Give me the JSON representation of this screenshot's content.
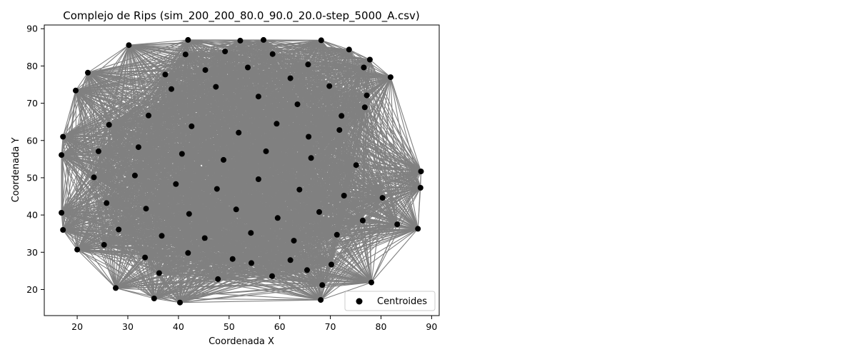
{
  "chart_data": {
    "type": "scatter",
    "title": "Complejo de Rips (sim_200_200_80.0_90.0_20.0-step_5000_A.csv)",
    "xlabel": "Coordenada X",
    "ylabel": "Coordenada Y",
    "xlim": [
      13.5,
      91.5
    ],
    "ylim": [
      13,
      91
    ],
    "xticks": [
      20,
      30,
      40,
      50,
      60,
      70,
      80,
      90
    ],
    "yticks": [
      20,
      30,
      40,
      50,
      60,
      70,
      80,
      90
    ],
    "grid": false,
    "legend": {
      "position": "lower right",
      "entries": [
        "Centroides"
      ]
    },
    "colors": {
      "points": "#000000",
      "edges": "#808080"
    },
    "series": [
      {
        "name": "Centroides",
        "points": [
          [
            30.2,
            85.6
          ],
          [
            41.9,
            87.0
          ],
          [
            52.2,
            86.8
          ],
          [
            56.8,
            87.0
          ],
          [
            68.2,
            86.9
          ],
          [
            73.7,
            84.4
          ],
          [
            77.8,
            81.7
          ],
          [
            81.9,
            77.0
          ],
          [
            22.1,
            78.2
          ],
          [
            19.7,
            73.4
          ],
          [
            17.2,
            61.0
          ],
          [
            16.9,
            56.1
          ],
          [
            87.9,
            51.7
          ],
          [
            87.8,
            47.3
          ],
          [
            16.9,
            40.6
          ],
          [
            17.2,
            36.0
          ],
          [
            87.3,
            36.3
          ],
          [
            20.0,
            30.7
          ],
          [
            27.6,
            20.4
          ],
          [
            35.2,
            17.6
          ],
          [
            40.3,
            16.5
          ],
          [
            68.1,
            17.2
          ],
          [
            78.1,
            21.9
          ],
          [
            68.4,
            21.2
          ],
          [
            41.4,
            83.1
          ],
          [
            49.2,
            83.9
          ],
          [
            58.6,
            83.2
          ],
          [
            65.6,
            80.4
          ],
          [
            76.6,
            79.6
          ],
          [
            37.4,
            77.7
          ],
          [
            45.3,
            78.9
          ],
          [
            53.7,
            79.6
          ],
          [
            62.1,
            76.7
          ],
          [
            69.8,
            74.6
          ],
          [
            77.2,
            72.1
          ],
          [
            38.6,
            73.8
          ],
          [
            47.4,
            74.4
          ],
          [
            55.8,
            71.8
          ],
          [
            63.5,
            69.7
          ],
          [
            72.2,
            66.6
          ],
          [
            76.8,
            68.9
          ],
          [
            26.3,
            64.2
          ],
          [
            34.1,
            66.7
          ],
          [
            42.6,
            63.8
          ],
          [
            51.9,
            62.1
          ],
          [
            59.4,
            64.5
          ],
          [
            65.7,
            61.0
          ],
          [
            71.8,
            62.8
          ],
          [
            24.2,
            57.1
          ],
          [
            32.1,
            58.2
          ],
          [
            40.7,
            56.4
          ],
          [
            48.9,
            54.8
          ],
          [
            57.3,
            57.1
          ],
          [
            66.2,
            55.3
          ],
          [
            75.1,
            53.4
          ],
          [
            23.3,
            50.1
          ],
          [
            31.4,
            50.6
          ],
          [
            39.5,
            48.3
          ],
          [
            47.6,
            47.0
          ],
          [
            55.8,
            49.6
          ],
          [
            63.9,
            46.8
          ],
          [
            72.7,
            45.2
          ],
          [
            80.3,
            44.6
          ],
          [
            25.8,
            43.2
          ],
          [
            33.6,
            41.7
          ],
          [
            42.1,
            40.3
          ],
          [
            51.4,
            41.5
          ],
          [
            59.6,
            39.2
          ],
          [
            67.8,
            40.8
          ],
          [
            76.4,
            38.5
          ],
          [
            83.2,
            37.5
          ],
          [
            28.2,
            36.1
          ],
          [
            36.7,
            34.4
          ],
          [
            45.2,
            33.8
          ],
          [
            54.3,
            35.2
          ],
          [
            62.8,
            33.1
          ],
          [
            71.3,
            34.7
          ],
          [
            25.3,
            32.0
          ],
          [
            33.4,
            28.6
          ],
          [
            41.9,
            29.8
          ],
          [
            50.7,
            28.2
          ],
          [
            54.4,
            27.1
          ],
          [
            62.1,
            27.9
          ],
          [
            70.2,
            26.7
          ],
          [
            36.2,
            24.4
          ],
          [
            47.8,
            22.8
          ],
          [
            58.5,
            23.6
          ],
          [
            65.4,
            25.2
          ]
        ]
      }
    ]
  }
}
